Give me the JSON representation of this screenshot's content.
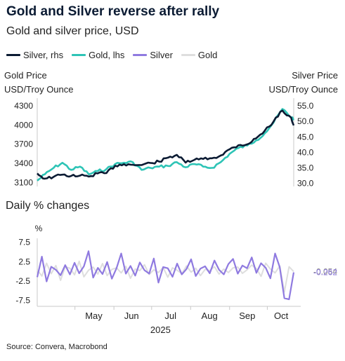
{
  "header": {
    "title": "Gold and Silver reverse after rally",
    "subtitle": "Gold and silver price, USD"
  },
  "legend": [
    {
      "label": "Silver, rhs",
      "color": "#0b1b33"
    },
    {
      "label": "Gold, lhs",
      "color": "#2ec4b6"
    },
    {
      "label": "Silver",
      "color": "#8f7ae0"
    },
    {
      "label": "Gold",
      "color": "#dedede"
    }
  ],
  "left_axis_title": [
    "Gold Price",
    "USD/Troy Ounce"
  ],
  "right_axis_title": [
    "Silver Price",
    "USD/Troy Ounce"
  ],
  "daily_title": "Daily % changes",
  "daily_unit": "%",
  "source": "Source: Convera, Macrobond",
  "chart_data": [
    {
      "type": "line",
      "x_unit": "week",
      "x_range": [
        "2025-04-01",
        "2025-10-22"
      ],
      "left_axis": {
        "ticks": [
          "3100",
          "3400",
          "3700",
          "4000",
          "4300"
        ],
        "ylim": [
          3040,
          4420
        ]
      },
      "right_axis": {
        "ticks": [
          "30.0",
          "35.0",
          "40.0",
          "45.0",
          "50.0",
          "55.0"
        ],
        "ylim": [
          29.0,
          57.5
        ]
      },
      "x": [
        "2025-04-01",
        "2025-04-07",
        "2025-04-14",
        "2025-04-21",
        "2025-04-28",
        "2025-05-05",
        "2025-05-12",
        "2025-05-19",
        "2025-05-26",
        "2025-06-02",
        "2025-06-09",
        "2025-06-16",
        "2025-06-23",
        "2025-06-30",
        "2025-07-07",
        "2025-07-14",
        "2025-07-21",
        "2025-07-28",
        "2025-08-04",
        "2025-08-11",
        "2025-08-18",
        "2025-08-25",
        "2025-09-01",
        "2025-09-08",
        "2025-09-15",
        "2025-09-22",
        "2025-09-29",
        "2025-10-06",
        "2025-10-13",
        "2025-10-20",
        "2025-10-22"
      ],
      "series": [
        {
          "name": "Gold, lhs",
          "axis": "left",
          "color": "#2ec4b6",
          "values": [
            3130,
            3230,
            3330,
            3410,
            3300,
            3350,
            3230,
            3280,
            3310,
            3390,
            3410,
            3420,
            3300,
            3330,
            3350,
            3360,
            3420,
            3340,
            3390,
            3350,
            3330,
            3420,
            3550,
            3640,
            3680,
            3760,
            3870,
            4040,
            4250,
            4120,
            4100
          ]
        },
        {
          "name": "Silver, rhs",
          "axis": "right",
          "color": "#0b1b33",
          "values": [
            33.2,
            31.5,
            32.1,
            32.8,
            32.4,
            32.5,
            32.2,
            33.2,
            33.3,
            35.7,
            36.2,
            36.0,
            35.9,
            36.6,
            37.0,
            38.3,
            39.2,
            36.7,
            37.6,
            37.9,
            38.1,
            39.0,
            41.0,
            42.3,
            42.6,
            44.5,
            47.0,
            50.0,
            53.5,
            51.2,
            48.7
          ]
        }
      ]
    },
    {
      "type": "line",
      "title": "Daily % changes",
      "ylabel": "%",
      "yticks": [
        "-7.5",
        "-2.5",
        "2.5",
        "7.5"
      ],
      "ylim": [
        -9.0,
        8.5
      ],
      "x_range": [
        "2025-04-01",
        "2025-10-22"
      ],
      "x_tick_labels": [
        "May",
        "Jun",
        "Jul",
        "Aug",
        "Sep",
        "Oct"
      ],
      "year_label": "2025",
      "series": [
        {
          "name": "Gold",
          "color": "#dedede",
          "values": [
            0.4,
            -1.2,
            2.1,
            -0.6,
            1.5,
            -2.3,
            1.2,
            0.8,
            -0.9,
            2.6,
            -1.4,
            0.3,
            1.1,
            -0.7,
            2.0,
            -1.1,
            0.5,
            0.9,
            -0.4,
            1.3,
            -1.8,
            0.6,
            0.2,
            1.7,
            -0.8,
            0.4,
            -0.3,
            1.0,
            -1.5,
            0.9,
            0.3,
            -0.6,
            1.4,
            -0.2,
            0.8,
            -1.1,
            0.5,
            0.2,
            1.2,
            -0.7,
            0.6,
            -0.3,
            0.9,
            1.1,
            -0.5,
            0.4,
            1.6,
            0.7,
            -1.3,
            2.1,
            0.6,
            -0.4,
            1.4,
            -5.3,
            1.2,
            -0.054
          ]
        },
        {
          "name": "Silver",
          "color": "#8f7ae0",
          "values": [
            -1.5,
            3.8,
            -2.6,
            1.2,
            0.4,
            -1.0,
            1.6,
            -0.8,
            2.2,
            -0.5,
            1.3,
            5.2,
            -1.6,
            0.9,
            -0.7,
            2.4,
            -1.9,
            0.8,
            4.6,
            -0.6,
            1.4,
            -1.1,
            2.3,
            0.3,
            -0.6,
            3.3,
            -2.9,
            1.1,
            0.8,
            -1.4,
            2.0,
            -0.8,
            0.6,
            3.1,
            -1.2,
            0.7,
            1.3,
            -0.5,
            2.8,
            0.4,
            -0.8,
            1.9,
            3.2,
            -0.6,
            1.5,
            0.8,
            3.6,
            -0.4,
            2.1,
            0.9,
            -1.8,
            4.6,
            1.1,
            -6.9,
            -7.2,
            -0.262
          ]
        }
      ],
      "end_labels": [
        "-0.054",
        "-0.262"
      ]
    }
  ]
}
